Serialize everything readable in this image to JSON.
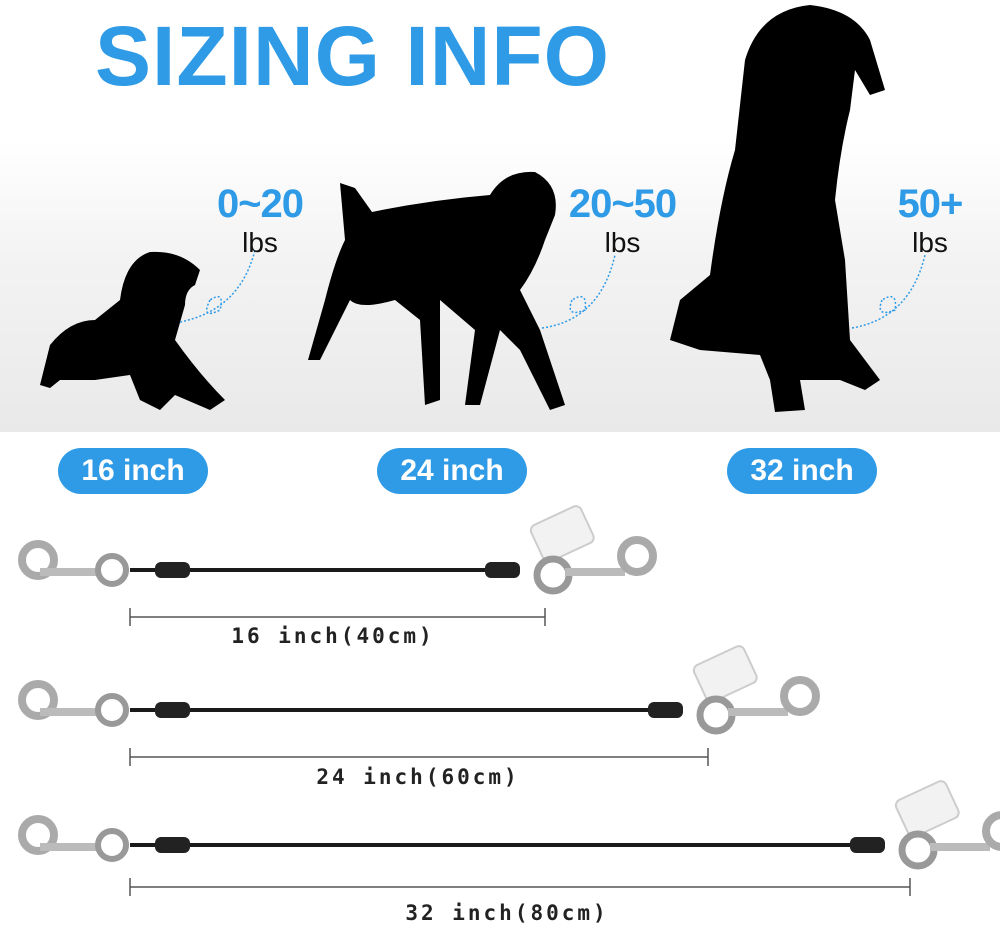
{
  "title": "SIZING INFO",
  "dogs": [
    {
      "weight": "0~20",
      "unit": "lbs",
      "length": "16 inch"
    },
    {
      "weight": "20~50",
      "unit": "lbs",
      "length": "24 inch"
    },
    {
      "weight": "50+",
      "unit": "lbs",
      "length": "32 inch"
    }
  ],
  "leashes": [
    {
      "label": "16 inch(40cm)"
    },
    {
      "label": "24 inch(60cm)"
    },
    {
      "label": "32 inch(80cm)"
    }
  ],
  "colors": {
    "accent": "#2f9be6",
    "silhouette": "#000000",
    "cable": "#1a1a1a",
    "metal": "#b8b8b8"
  }
}
